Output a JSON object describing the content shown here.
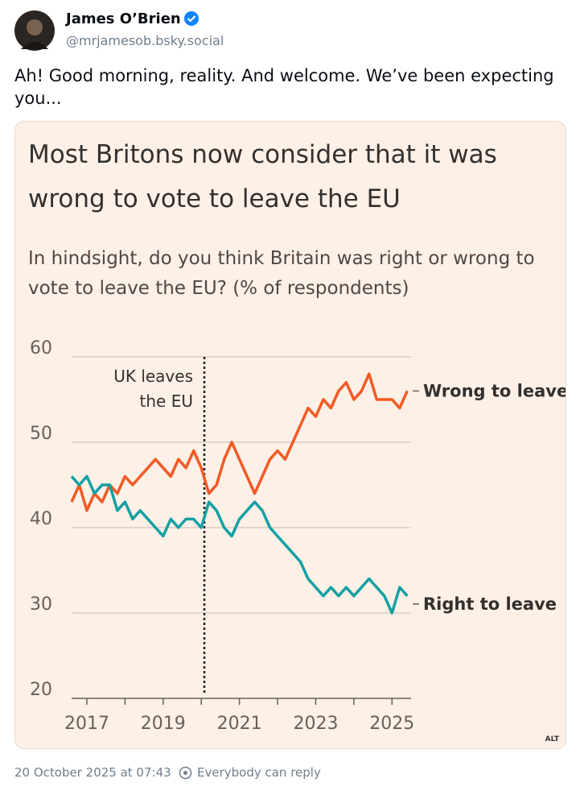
{
  "post": {
    "author": "James O’Brien",
    "handle": "@mrjamesob.bsky.social",
    "text": "Ah! Good morning, reality. And welcome. We’ve been expecting you...",
    "alt_badge": "ALT",
    "timestamp": "20 October 2025 at 07:43",
    "reply_setting": "Everybody can reply"
  },
  "chart_data": {
    "type": "line",
    "title": "Most Britons now consider that it was wrong to vote to leave the EU",
    "subtitle": "In hindsight, do you think Britain was right or wrong to vote to leave the EU? (% of respondents)",
    "x": [
      2016.6,
      2016.8,
      2017.0,
      2017.2,
      2017.4,
      2017.6,
      2017.8,
      2018.0,
      2018.2,
      2018.4,
      2018.6,
      2018.8,
      2019.0,
      2019.2,
      2019.4,
      2019.6,
      2019.8,
      2020.0,
      2020.2,
      2020.4,
      2020.6,
      2020.8,
      2021.0,
      2021.2,
      2021.4,
      2021.6,
      2021.8,
      2022.0,
      2022.2,
      2022.4,
      2022.6,
      2022.8,
      2023.0,
      2023.2,
      2023.4,
      2023.6,
      2023.8,
      2024.0,
      2024.2,
      2024.4,
      2024.6,
      2024.8,
      2025.0,
      2025.2,
      2025.4
    ],
    "series": [
      {
        "name": "Wrong to leave",
        "color": "#f15a24",
        "values": [
          43,
          45,
          42,
          44,
          43,
          45,
          44,
          46,
          45,
          46,
          47,
          48,
          47,
          46,
          48,
          47,
          49,
          47,
          44,
          45,
          48,
          50,
          48,
          46,
          44,
          46,
          48,
          49,
          48,
          50,
          52,
          54,
          53,
          55,
          54,
          56,
          57,
          55,
          56,
          58,
          55,
          55,
          55,
          54,
          56
        ]
      },
      {
        "name": "Right to leave",
        "color": "#14a0a3",
        "values": [
          46,
          45,
          46,
          44,
          45,
          45,
          42,
          43,
          41,
          42,
          41,
          40,
          39,
          41,
          40,
          41,
          41,
          40,
          43,
          42,
          40,
          39,
          41,
          42,
          43,
          42,
          40,
          39,
          38,
          37,
          36,
          34,
          33,
          32,
          33,
          32,
          33,
          32,
          33,
          34,
          33,
          32,
          30,
          33,
          32
        ]
      }
    ],
    "annotation": {
      "x": 2020.08,
      "lines": [
        "UK leaves",
        "the EU"
      ]
    },
    "xlim": [
      2016.6,
      2025.5
    ],
    "xticks": [
      2017,
      2019,
      2021,
      2023,
      2025
    ],
    "xminor_ticks": [
      2018,
      2020,
      2022,
      2024
    ],
    "ylim": [
      20,
      60
    ],
    "yticks": [
      20,
      30,
      40,
      50,
      60
    ],
    "grid": true
  }
}
